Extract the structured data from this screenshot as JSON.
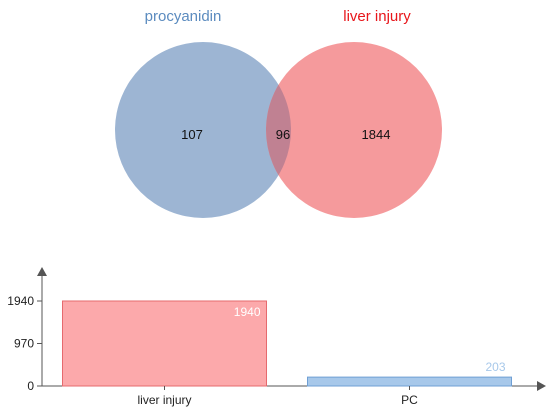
{
  "chart_data": [
    {
      "type": "venn",
      "sets": [
        {
          "name": "procyanidin",
          "color": "#5b8bbf",
          "fill": "#9db5d3"
        },
        {
          "name": "liver injury",
          "color": "#e8161b",
          "fill": "#f59a9c"
        }
      ],
      "regions": {
        "left_only": 107,
        "intersection": 96,
        "right_only": 1844
      },
      "intersection_fill": "#c08192"
    },
    {
      "type": "bar",
      "categories": [
        "liver injury",
        "PC"
      ],
      "values": [
        1940,
        203
      ],
      "data_labels": [
        "1940",
        "203"
      ],
      "yticks": [
        "0",
        "970",
        "1940"
      ],
      "ylim": [
        0,
        1940
      ],
      "bar_fills": [
        "#fca9ab",
        "#a7c8ea"
      ],
      "bar_strokes": [
        "#e66a6e",
        "#6f9fd4"
      ],
      "label_colors": [
        "#ffffff",
        "#a7c8ea"
      ],
      "grid": false
    }
  ]
}
